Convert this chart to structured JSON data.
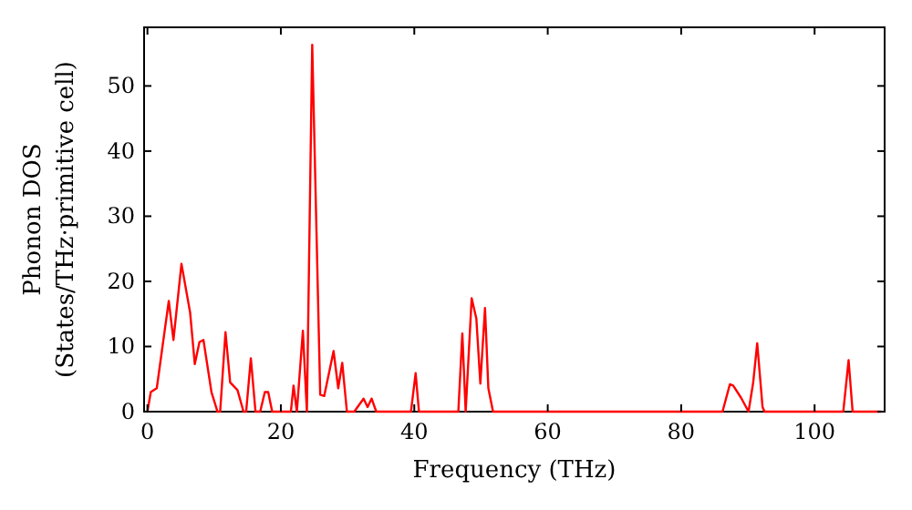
{
  "chart_data": {
    "type": "line",
    "xlabel": "Frequency (THz)",
    "ylabel": "Phonon DOS\n(States/THz·primitive cell)",
    "xlim": [
      -0.5,
      110.5
    ],
    "ylim": [
      0,
      59
    ],
    "xticks": [
      0,
      20,
      40,
      60,
      80,
      100
    ],
    "yticks": [
      0,
      10,
      20,
      30,
      40,
      50
    ],
    "grid": false,
    "marker": "none",
    "line_style": "solid",
    "series": [
      {
        "color": "#ff0000",
        "x": [
          0,
          0.5,
          1.4,
          3.2,
          3.9,
          5.1,
          6.4,
          7.1,
          7.8,
          8.4,
          9.6,
          10.5,
          10.9,
          11.7,
          12.4,
          13.5,
          14.4,
          14.8,
          15.5,
          16.2,
          16.9,
          17.6,
          18.1,
          18.7,
          21.5,
          21.9,
          22.4,
          23.3,
          23.9,
          24.7,
          25.9,
          26.5,
          27.9,
          28.6,
          29.2,
          29.9,
          31,
          32.4,
          33,
          33.6,
          34.3,
          39.5,
          40.2,
          40.7,
          46.6,
          47.2,
          47.7,
          48.6,
          49.3,
          49.9,
          50.6,
          51.1,
          51.8,
          86.2,
          87.3,
          87.8,
          89,
          90.1,
          90.8,
          91.4,
          92.2,
          92.5,
          104.3,
          105.1,
          105.7,
          110
        ],
        "values": [
          0,
          3,
          3.6,
          17,
          11,
          22.7,
          15.2,
          7.3,
          10.7,
          11,
          3,
          0,
          0,
          12.2,
          4.5,
          3.3,
          0,
          0,
          8.2,
          0,
          0,
          3,
          3,
          0,
          0,
          4,
          0,
          12.4,
          0,
          56.3,
          2.6,
          2.4,
          9.3,
          3.6,
          7.5,
          0,
          0,
          2,
          0.7,
          2,
          0,
          0,
          5.9,
          0,
          0,
          12,
          0,
          17.4,
          14.3,
          4.3,
          15.9,
          3.6,
          0,
          0,
          4.2,
          4,
          2.1,
          0,
          4.5,
          10.5,
          0.7,
          0,
          0,
          7.9,
          0,
          0
        ]
      }
    ]
  }
}
